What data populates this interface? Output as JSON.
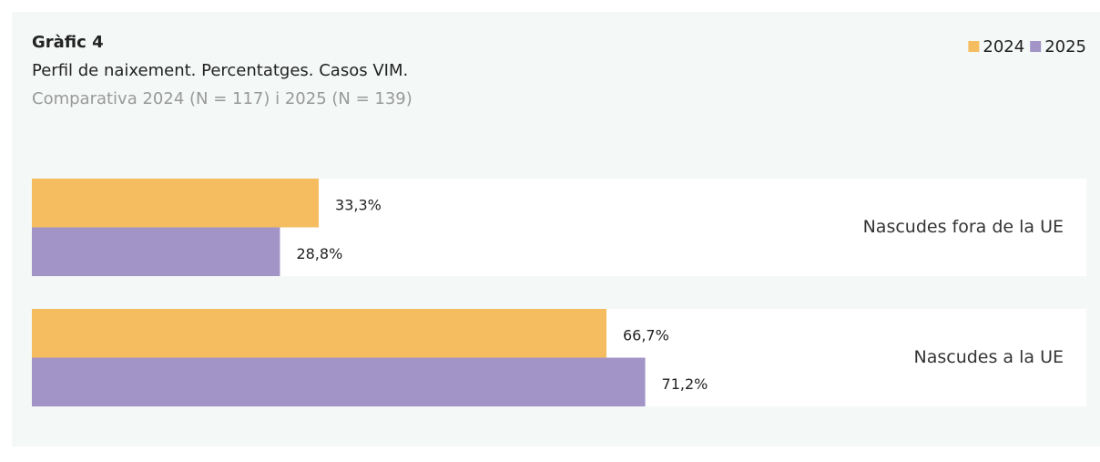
{
  "chart_data": {
    "type": "hbar",
    "title": "Gràfic 4",
    "subtitles": [
      "Perfil de naixement. Percentatges. Casos VIM.",
      "Comparativa 2024 (N = 117) i 2025 (N = 139)"
    ],
    "categories": [
      "Nascudes fora de la UE",
      "Nascudes a la UE"
    ],
    "series": [
      {
        "name": "2024",
        "color": "#f5bd60",
        "values": [
          33.3,
          66.7
        ],
        "value_labels": [
          "33,3%",
          "66,7%"
        ]
      },
      {
        "name": "2025",
        "color": "#a394c8",
        "values": [
          28.8,
          71.2
        ],
        "value_labels": [
          "28,8%",
          "71,2%"
        ]
      }
    ],
    "xlim": [
      0,
      100
    ],
    "legend": "top-right"
  }
}
